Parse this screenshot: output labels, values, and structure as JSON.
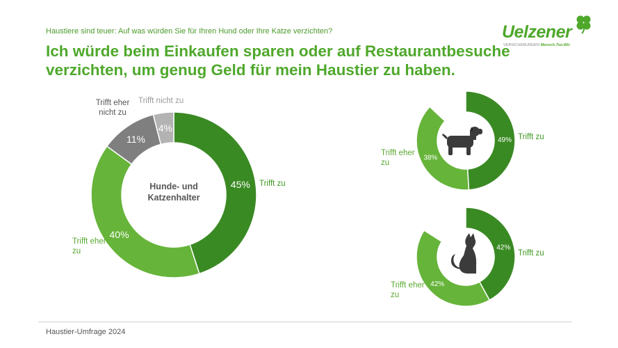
{
  "header": {
    "subtitle": "Haustiere sind teuer: Auf was würden Sie für Ihren Hund oder Ihre Katze verzichten?",
    "headline": "Ich würde beim Einkaufen sparen oder auf Restaurantbesuche verzichten, um genug Geld für mein Haustier zu haben."
  },
  "logo": {
    "wordmark": "Uelzener",
    "tagline_prefix": "VERSICHERUNGEN",
    "tagline": "Mensch.Tier.Wir."
  },
  "footer": {
    "text": "Haustier-Umfrage 2024"
  },
  "colors": {
    "dark_green": "#3a8a23",
    "light_green": "#66b43a",
    "dark_gray": "#7f7f7f",
    "light_gray": "#b3b3b3",
    "icon": "#3b3b3b"
  },
  "chart_data": [
    {
      "type": "pie",
      "variant": "donut",
      "center_label": "Hunde- und Katzenhalter",
      "slices": [
        {
          "label": "Trifft zu",
          "value": 45,
          "value_label": "45%",
          "color": "#3a8a23"
        },
        {
          "label": "Trifft eher zu",
          "value": 40,
          "value_label": "40%",
          "color": "#66b43a"
        },
        {
          "label": "Trifft eher nicht zu",
          "value": 11,
          "value_label": "11%",
          "color": "#7f7f7f"
        },
        {
          "label": "Trifft nicht zu",
          "value": 4,
          "value_label": "4%",
          "color": "#b3b3b3"
        }
      ]
    },
    {
      "type": "pie",
      "variant": "donut",
      "center_icon": "dog-icon",
      "slices": [
        {
          "label": "Trifft zu",
          "value": 49,
          "value_label": "49%",
          "color": "#3a8a23"
        },
        {
          "label": "Trifft eher zu",
          "value": 38,
          "value_label": "38%",
          "color": "#66b43a"
        }
      ]
    },
    {
      "type": "pie",
      "variant": "donut",
      "center_icon": "cat-icon",
      "slices": [
        {
          "label": "Trifft zu",
          "value": 42,
          "value_label": "42%",
          "color": "#3a8a23"
        },
        {
          "label": "Trifft eher zu",
          "value": 42,
          "value_label": "42%",
          "color": "#66b43a"
        }
      ]
    }
  ]
}
